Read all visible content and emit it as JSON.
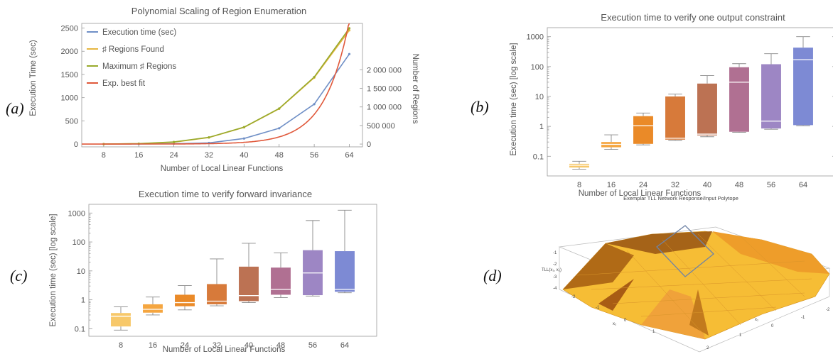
{
  "labels": {
    "a": "(a)",
    "b": "(b)",
    "c": "(c)",
    "d": "(d)"
  },
  "chart_data": [
    {
      "id": "a",
      "type": "line",
      "title": "Polynomial Scaling of Region Enumeration",
      "xlabel": "Number of Local Linear Functions",
      "ylabel": "Execution Time (sec)",
      "ylabel_right": "Number of Regions",
      "x": [
        8,
        16,
        24,
        32,
        40,
        48,
        56,
        64
      ],
      "xlim": [
        3,
        67
      ],
      "ylim": [
        -60,
        2600
      ],
      "yticks": [
        0,
        500,
        1000,
        1500,
        2000,
        2500
      ],
      "yticks_right": [
        {
          "v": 0,
          "label": "0"
        },
        {
          "v": 500000,
          "label": "500 000"
        },
        {
          "v": 1000000,
          "label": "1 000 000"
        },
        {
          "v": 1500000,
          "label": "1 500 000"
        },
        {
          "v": 2000000,
          "label": "2 000 000"
        }
      ],
      "right_scale": 1250,
      "legend_position": "top-left",
      "series": [
        {
          "name": "Execution time (sec)",
          "color": "#6f8fc6",
          "values": [
            0,
            2,
            8,
            25,
            120,
            340,
            860,
            1940
          ],
          "markers": true
        },
        {
          "name": "♯ Regions Found",
          "color": "#e6b640",
          "values": [
            0,
            8,
            40,
            140,
            360,
            760,
            1430,
            2450
          ],
          "markers": true
        },
        {
          "name": "Maximum ♯ Regions",
          "color": "#98aa2c",
          "values": [
            0,
            10,
            45,
            145,
            365,
            765,
            1445,
            2495
          ],
          "markers": true
        },
        {
          "name": "Exp. best fit",
          "color": "#e0583a",
          "function": "exp",
          "a": 0.03,
          "b": 0.178,
          "markers": false
        }
      ]
    },
    {
      "id": "b",
      "type": "box",
      "title": "Execution time to verify one output constraint",
      "xlabel": "Number of Local Linear Functions",
      "ylabel": "Execution time (sec) [log scale]",
      "scale": "log",
      "ylim": [
        0.022,
        2000
      ],
      "yticks": [
        {
          "v": 0.1,
          "label": "0.1"
        },
        {
          "v": 1,
          "label": "1"
        },
        {
          "v": 10,
          "label": "10"
        },
        {
          "v": 100,
          "label": "100"
        },
        {
          "v": 1000,
          "label": "1000"
        }
      ],
      "boxes": [
        {
          "x": "8",
          "min": 0.037,
          "q1": 0.042,
          "median": 0.05,
          "q3": 0.056,
          "max": 0.068,
          "color": "#f7c86a"
        },
        {
          "x": "16",
          "min": 0.17,
          "q1": 0.2,
          "median": 0.25,
          "q3": 0.3,
          "max": 0.52,
          "color": "#f5a640"
        },
        {
          "x": "24",
          "min": 0.24,
          "q1": 0.26,
          "median": 1.05,
          "q3": 2.2,
          "max": 2.8,
          "color": "#ea8a28"
        },
        {
          "x": "32",
          "min": 0.34,
          "q1": 0.36,
          "median": 0.4,
          "q3": 10,
          "max": 12,
          "color": "#d77a3a"
        },
        {
          "x": "40",
          "min": 0.45,
          "q1": 0.5,
          "median": 0.55,
          "q3": 27,
          "max": 50,
          "color": "#bc7253"
        },
        {
          "x": "48",
          "min": 0.63,
          "q1": 0.66,
          "median": 30,
          "q3": 95,
          "max": 125,
          "color": "#b07092"
        },
        {
          "x": "56",
          "min": 0.8,
          "q1": 0.85,
          "median": 1.5,
          "q3": 120,
          "max": 270,
          "color": "#9d86c4"
        },
        {
          "x": "64",
          "min": 1.05,
          "q1": 1.1,
          "median": 170,
          "q3": 430,
          "max": 1000,
          "color": "#7d8ad4"
        }
      ]
    },
    {
      "id": "c",
      "type": "box",
      "title": "Execution time to verify forward invariance",
      "xlabel": "Number of Local Linear Functions",
      "ylabel": "Execution time (sec) [log scale]",
      "scale": "log",
      "ylim": [
        0.055,
        2000
      ],
      "yticks": [
        {
          "v": 0.1,
          "label": "0.1"
        },
        {
          "v": 1,
          "label": "1"
        },
        {
          "v": 10,
          "label": "10"
        },
        {
          "v": 100,
          "label": "100"
        },
        {
          "v": 1000,
          "label": "1000"
        }
      ],
      "boxes": [
        {
          "x": "8",
          "min": 0.09,
          "q1": 0.12,
          "median": 0.27,
          "q3": 0.35,
          "max": 0.57,
          "color": "#f7c86a"
        },
        {
          "x": "16",
          "min": 0.3,
          "q1": 0.36,
          "median": 0.47,
          "q3": 0.7,
          "max": 1.25,
          "color": "#f5a640"
        },
        {
          "x": "24",
          "min": 0.45,
          "q1": 0.6,
          "median": 0.8,
          "q3": 1.5,
          "max": 3.1,
          "color": "#ea8a28"
        },
        {
          "x": "32",
          "min": 0.62,
          "q1": 0.7,
          "median": 0.9,
          "q3": 3.5,
          "max": 26,
          "color": "#d77a3a"
        },
        {
          "x": "40",
          "min": 0.8,
          "q1": 0.9,
          "median": 1.4,
          "q3": 14,
          "max": 90,
          "color": "#bc7253"
        },
        {
          "x": "48",
          "min": 1.2,
          "q1": 1.5,
          "median": 2.3,
          "q3": 13,
          "max": 42,
          "color": "#b07092"
        },
        {
          "x": "56",
          "min": 1.35,
          "q1": 1.45,
          "median": 8.5,
          "q3": 52,
          "max": 550,
          "color": "#9d86c4"
        },
        {
          "x": "64",
          "min": 1.75,
          "q1": 1.9,
          "median": 2.3,
          "q3": 48,
          "max": 1250,
          "color": "#7d8ad4"
        }
      ]
    }
  ],
  "panel_d": {
    "title": "Exemplar TLL Network Response/Input Polytope",
    "zlabel": "TLL(x₁, x₂)",
    "x1label": "x₁",
    "x2label": "x₂",
    "zticks": [
      "-1",
      "-2",
      "-3",
      "-4"
    ],
    "x2ticks": [
      "-2",
      "-1",
      "0",
      "1"
    ],
    "x1ticks": [
      "-2",
      "-1",
      "0",
      "1",
      "2"
    ],
    "surface_colors": {
      "light": "#f7c63c",
      "mid": "#f2a82a",
      "dark": "#b06a16",
      "polytope": "#6f83a6"
    }
  }
}
